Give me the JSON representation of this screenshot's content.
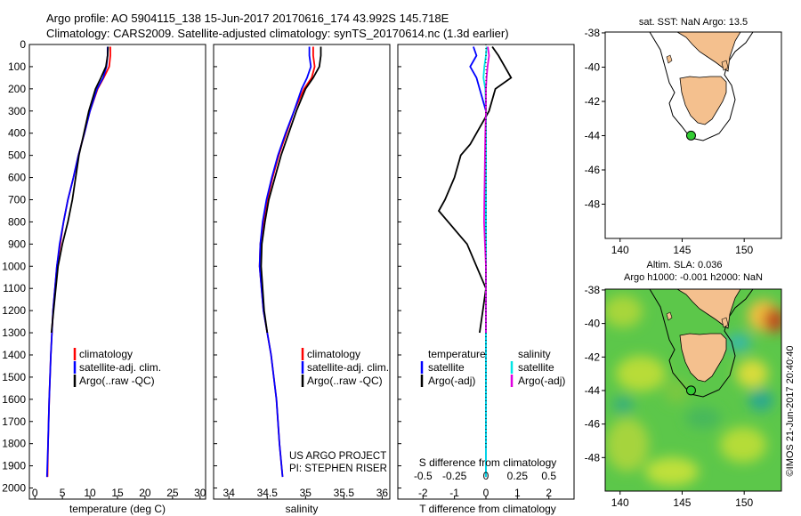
{
  "header": {
    "line1": "Argo profile: AO 5904115_138 15-Jun-2017 20170616_174 43.992S 145.718E",
    "line2": "Climatology: CARS2009. Satellite-adjusted climatology: synTS_20170614.nc (1.3d earlier)"
  },
  "colors": {
    "climatology": "#ff0000",
    "satellite": "#0000ff",
    "argo": "#000000",
    "sat_salinity": "#00e5e5",
    "argo_salinity_diff": "#e000e0",
    "land": "#f4c08e"
  },
  "depth_ticks": [
    "0",
    "100",
    "200",
    "300",
    "400",
    "500",
    "600",
    "700",
    "800",
    "900",
    "1000",
    "1100",
    "1200",
    "1300",
    "1400",
    "1500",
    "1600",
    "1700",
    "1800",
    "1900",
    "2000"
  ],
  "chart_data": [
    {
      "id": "temperature",
      "type": "line",
      "xlabel": "temperature (deg C)",
      "ylabel": "",
      "xlim": [
        -1,
        31
      ],
      "ylim": [
        2050,
        0
      ],
      "xticks": [
        "0",
        "5",
        "10",
        "15",
        "20",
        "25",
        "30"
      ],
      "legend": [
        "climatology",
        "satellite-adj. clim.",
        "Argo(..raw -QC)"
      ],
      "series": [
        {
          "name": "climatology",
          "color": "#ff0000",
          "depth": [
            10,
            50,
            100,
            150,
            200,
            300,
            400,
            500,
            600,
            700,
            800,
            900,
            1000,
            1200,
            1400,
            1600,
            1800,
            1950
          ],
          "values": [
            13.7,
            13.7,
            13.5,
            12.5,
            11.4,
            10.0,
            9.0,
            7.9,
            7.0,
            6.0,
            5.2,
            4.6,
            4.0,
            3.3,
            2.9,
            2.6,
            2.4,
            2.3
          ]
        },
        {
          "name": "satellite-adj. clim.",
          "color": "#0000ff",
          "depth": [
            10,
            50,
            100,
            150,
            200,
            300,
            400,
            500,
            600,
            700,
            800,
            900,
            1000,
            1200,
            1400,
            1600,
            1800,
            1950
          ],
          "values": [
            13.2,
            13.2,
            13.0,
            12.4,
            11.3,
            10.0,
            9.0,
            7.9,
            7.0,
            6.0,
            5.2,
            4.5,
            4.0,
            3.3,
            2.9,
            2.6,
            2.4,
            2.2
          ]
        },
        {
          "name": "Argo(..raw -QC)",
          "color": "#000000",
          "depth": [
            10,
            50,
            100,
            150,
            200,
            300,
            400,
            500,
            600,
            700,
            800,
            900,
            1000,
            1200,
            1300
          ],
          "values": [
            13.3,
            13.2,
            12.9,
            12.0,
            11.0,
            9.8,
            8.9,
            8.0,
            7.4,
            6.8,
            6.0,
            5.0,
            4.2,
            3.4,
            3.0
          ]
        }
      ],
      "annotations": []
    },
    {
      "id": "salinity",
      "type": "line",
      "xlabel": "salinity",
      "ylabel": "",
      "xlim": [
        33.8,
        36.1
      ],
      "ylim": [
        2050,
        0
      ],
      "xticks": [
        "34",
        "34.5",
        "35",
        "35.5",
        "36"
      ],
      "legend": [
        "climatology",
        "satellite-adj. clim.",
        "Argo(..raw -QC)"
      ],
      "series": [
        {
          "name": "climatology",
          "color": "#ff0000",
          "depth": [
            10,
            50,
            100,
            150,
            200,
            300,
            400,
            500,
            600,
            700,
            800,
            900,
            1000,
            1200,
            1400,
            1600,
            1800,
            1950
          ],
          "values": [
            35.1,
            35.1,
            35.12,
            35.08,
            34.98,
            34.85,
            34.75,
            34.65,
            34.57,
            34.5,
            34.45,
            34.41,
            34.4,
            34.45,
            34.55,
            34.62,
            34.66,
            34.7
          ]
        },
        {
          "name": "satellite-adj. clim.",
          "color": "#0000ff",
          "depth": [
            10,
            50,
            100,
            150,
            200,
            300,
            400,
            500,
            600,
            700,
            800,
            900,
            1000,
            1200,
            1400,
            1600,
            1800,
            1950
          ],
          "values": [
            35.05,
            35.05,
            35.07,
            35.02,
            34.95,
            34.85,
            34.74,
            34.64,
            34.56,
            34.49,
            34.44,
            34.41,
            34.4,
            34.45,
            34.55,
            34.62,
            34.66,
            34.7
          ]
        },
        {
          "name": "Argo(..raw -QC)",
          "color": "#000000",
          "depth": [
            10,
            50,
            100,
            150,
            200,
            300,
            400,
            500,
            600,
            700,
            800,
            900,
            1000,
            1200,
            1300
          ],
          "values": [
            35.2,
            35.2,
            35.18,
            35.1,
            35.0,
            34.88,
            34.78,
            34.68,
            34.6,
            34.52,
            34.47,
            34.43,
            34.42,
            34.46,
            34.5
          ]
        }
      ],
      "annotations": [
        "US ARGO PROJECT",
        "PI: STEPHEN RISER"
      ]
    },
    {
      "id": "difference",
      "type": "line",
      "xlabel": "T difference from climatology",
      "xlabel_top": "S difference from climatology",
      "xlim": [
        -2.8,
        2.8
      ],
      "ylim": [
        2050,
        0
      ],
      "xticks": [
        "-2",
        "-1",
        "0",
        "1",
        "2"
      ],
      "xticks_top": [
        "-0.5",
        "-0.25",
        "0",
        "0.25",
        "0.5"
      ],
      "legend_left": [
        "temperature",
        "satellite",
        "Argo(-adj)"
      ],
      "legend_right": [
        "salinity",
        "satellite",
        "Argo(-adj)"
      ],
      "series": [
        {
          "name": "temperature satellite",
          "color": "#0000ff",
          "depth": [
            10,
            50,
            100,
            150,
            200,
            300,
            400,
            500,
            700,
            900,
            1000,
            1200,
            1400,
            1600,
            1800,
            1950
          ],
          "values": [
            -0.4,
            -0.3,
            -0.5,
            -0.3,
            -0.2,
            0.0,
            0.0,
            0.0,
            0.0,
            0.0,
            0.0,
            0.0,
            0.0,
            0.0,
            0.0,
            0.0
          ]
        },
        {
          "name": "temperature Argo(-adj)",
          "color": "#000000",
          "depth": [
            10,
            50,
            100,
            150,
            200,
            300,
            350,
            400,
            450,
            500,
            600,
            700,
            750,
            800,
            850,
            900,
            1000,
            1100,
            1200,
            1300
          ],
          "values": [
            0.2,
            0.4,
            0.6,
            0.8,
            0.3,
            0.1,
            -0.1,
            -0.3,
            -0.5,
            -0.8,
            -1.0,
            -1.3,
            -1.5,
            -1.2,
            -0.9,
            -0.6,
            -0.3,
            0.0,
            -0.1,
            -0.2
          ]
        },
        {
          "name": "salinity satellite",
          "color": "#00e5e5",
          "depth": [
            10,
            50,
            100,
            150,
            200,
            300,
            400,
            500,
            700,
            900,
            1000,
            1200,
            1400,
            1600,
            1800,
            1950
          ],
          "values": [
            0.02,
            0.0,
            -0.05,
            -0.08,
            -0.02,
            0.0,
            0.0,
            0.0,
            0.0,
            0.0,
            0.0,
            0.0,
            0.0,
            0.0,
            0.0,
            0.0
          ]
        },
        {
          "name": "salinity Argo(-adj)",
          "color": "#e000e0",
          "depth": [
            10,
            50,
            100,
            150,
            200,
            300,
            400,
            500,
            600,
            700,
            800,
            900,
            1000,
            1100,
            1200,
            1300
          ],
          "values": [
            0.06,
            0.1,
            0.05,
            0.02,
            0.0,
            0.0,
            -0.02,
            -0.03,
            -0.04,
            -0.05,
            -0.06,
            -0.03,
            0.0,
            0.0,
            0.0,
            0.0
          ]
        }
      ]
    }
  ],
  "map_top": {
    "title": "sat. SST: NaN  Argo: 13.5",
    "yticks": [
      "-38",
      "-40",
      "-42",
      "-44",
      "-46",
      "-48"
    ],
    "xticks": [
      "140",
      "145",
      "150"
    ],
    "float_lon": 145.718,
    "float_lat": -43.992
  },
  "map_bottom": {
    "title1": "Altim. SLA: 0.036",
    "title2": "Argo h1000: -0.001 h2000: NaN",
    "yticks": [
      "-38",
      "-40",
      "-42",
      "-44",
      "-46",
      "-48"
    ],
    "xticks": [
      "140",
      "145",
      "150"
    ],
    "side_label": "©IMOS 21-Jun-2017 20:40:40"
  }
}
